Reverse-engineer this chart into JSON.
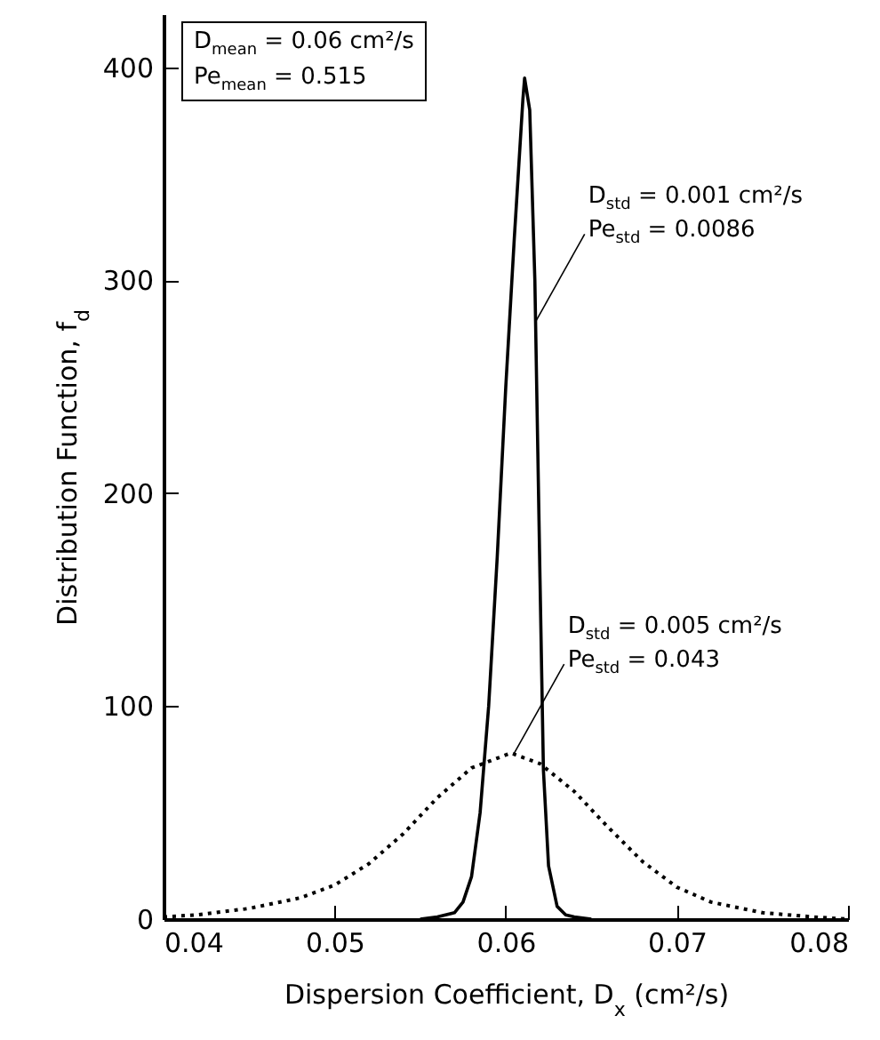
{
  "chart_data": {
    "type": "line",
    "xlabel": "Dispersion Coefficient, D$_{x}$ (cm²/s)",
    "ylabel": "Distribution Function, f$_{d}$",
    "xlim": [
      0.04,
      0.08
    ],
    "xticks": [
      0.04,
      0.05,
      0.06,
      0.07,
      0.08
    ],
    "ylim": [
      0,
      425
    ],
    "yticks": [
      0,
      100,
      200,
      300,
      400
    ],
    "marker": "none",
    "series": [
      {
        "color": "#000000",
        "line_style": "solid",
        "x": [
          0.055,
          0.056,
          0.057,
          0.0575,
          0.058,
          0.0585,
          0.059,
          0.0595,
          0.06,
          0.0605,
          0.061,
          0.0611,
          0.0614,
          0.0617,
          0.062,
          0.0622,
          0.0625,
          0.063,
          0.0635,
          0.064,
          0.065
        ],
        "values": [
          0,
          1,
          3,
          8,
          20,
          50,
          100,
          170,
          250,
          320,
          385,
          395,
          380,
          300,
          160,
          70,
          25,
          6,
          2,
          1,
          0
        ]
      },
      {
        "color": "#000000",
        "line_style": "dotted",
        "x": [
          0.04,
          0.042,
          0.045,
          0.048,
          0.05,
          0.052,
          0.054,
          0.056,
          0.058,
          0.0603,
          0.062,
          0.064,
          0.066,
          0.068,
          0.07,
          0.072,
          0.075,
          0.078,
          0.08
        ],
        "values": [
          1,
          2,
          5,
          10,
          16,
          26,
          40,
          57,
          71,
          78,
          73,
          60,
          43,
          27,
          15,
          8,
          3,
          1,
          0
        ]
      }
    ],
    "annotations": [
      "D$_{mean}$ = 0.06 cm²/s\nPe$_{mean}$ = 0.515",
      {
        "text": "D$_{std}$ = 0.001 cm²/s\nPe$_{std}$ = 0.0086",
        "x": 0.0617,
        "y": 280
      },
      {
        "text": "D$_{std}$ = 0.005 cm²/s\nPe$_{std}$ = 0.043",
        "x": 0.0605,
        "y": 78
      }
    ]
  }
}
